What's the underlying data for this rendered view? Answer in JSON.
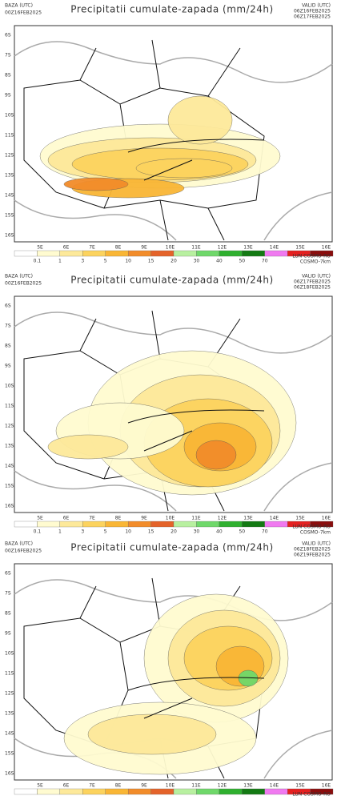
{
  "title": "Precipitatii cumulate-zapada (mm/24h)",
  "base_label": "BAZA (UTC)",
  "valid_label": "VALID (UTC)",
  "model_labels": [
    "LUN COSMO-RO",
    "COSMO-7km"
  ],
  "lat_labels": [
    "6S",
    "7S",
    "8S",
    "9S",
    "10S",
    "11S",
    "12S",
    "13S",
    "14S",
    "15S",
    "16S"
  ],
  "lon_labels": [
    "5E",
    "6E",
    "7E",
    "8E",
    "9E",
    "10E",
    "11E",
    "12E",
    "13E",
    "14E",
    "15E",
    "16E"
  ],
  "legend": {
    "labels": [
      "0.1",
      "1",
      "3",
      "5",
      "10",
      "15",
      "20",
      "30",
      "40",
      "50",
      "70"
    ],
    "colors": [
      "#ffffff",
      "#fffbd0",
      "#fde99a",
      "#fcd35e",
      "#f9b635",
      "#f28c2a",
      "#e4632a",
      "#b8f0a0",
      "#6fd86a",
      "#2fb02f",
      "#137a13",
      "#f07af0",
      "#e52020",
      "#8b0d0d"
    ]
  },
  "panels": [
    {
      "base": "00Z16FEB2025",
      "valid_from": "06Z16FEB2025",
      "valid_to": "06Z17FEB2025"
    },
    {
      "base": "00Z16FEB2025",
      "valid_from": "06Z17FEB2025",
      "valid_to": "06Z18FEB2025"
    },
    {
      "base": "00Z16FEB2025",
      "valid_from": "06Z18FEB2025",
      "valid_to": "06Z19FEB2025"
    }
  ]
}
